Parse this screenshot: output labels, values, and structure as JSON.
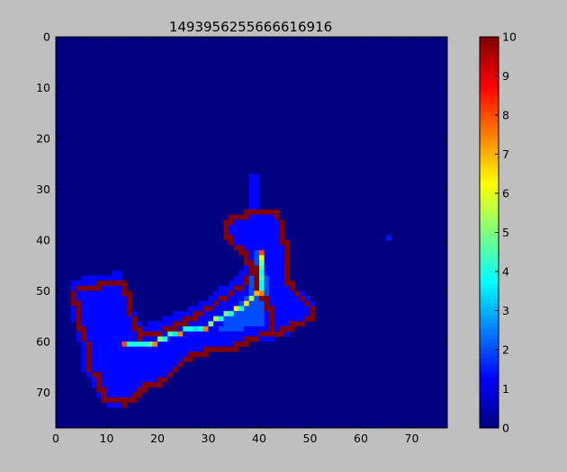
{
  "chart_data": {
    "type": "heatmap",
    "title": "1493956255666616916",
    "xlabel": "",
    "ylabel": "",
    "grid_size": 77,
    "xlim": [
      0,
      77
    ],
    "ylim": [
      77,
      0
    ],
    "x_ticks": [
      0,
      10,
      20,
      30,
      40,
      50,
      60,
      70
    ],
    "y_ticks": [
      0,
      10,
      20,
      30,
      40,
      50,
      60,
      70
    ],
    "colorbar": {
      "vmin": 0,
      "vmax": 10,
      "ticks": [
        0,
        1,
        2,
        3,
        4,
        5,
        6,
        7,
        8,
        9,
        10
      ],
      "colormap": "jet"
    },
    "background_value": 0,
    "regions": [
      {
        "note": "filled interior",
        "value": 1.3,
        "polygon": [
          [
            3,
            48.5
          ],
          [
            6,
            47
          ],
          [
            9,
            47
          ],
          [
            11,
            46.5
          ],
          [
            13,
            46
          ],
          [
            14,
            49
          ],
          [
            15,
            53
          ],
          [
            17,
            57
          ],
          [
            22,
            55
          ],
          [
            27,
            53
          ],
          [
            31,
            51
          ],
          [
            33,
            49
          ],
          [
            36,
            47
          ],
          [
            38,
            44
          ],
          [
            36,
            41
          ],
          [
            33,
            39.5
          ],
          [
            33,
            37
          ],
          [
            36,
            35
          ],
          [
            41,
            34.5
          ],
          [
            44,
            35.5
          ],
          [
            45,
            40
          ],
          [
            46,
            44
          ],
          [
            45.5,
            48
          ],
          [
            48,
            50
          ],
          [
            51,
            52
          ],
          [
            51,
            55
          ],
          [
            48,
            57
          ],
          [
            45,
            59
          ],
          [
            41,
            60
          ],
          [
            37,
            60
          ],
          [
            35,
            61
          ],
          [
            30,
            62
          ],
          [
            26,
            63
          ],
          [
            23,
            66
          ],
          [
            21,
            68
          ],
          [
            19,
            69
          ],
          [
            17,
            70
          ],
          [
            15,
            72
          ],
          [
            12,
            73
          ],
          [
            9,
            72
          ],
          [
            8,
            70
          ],
          [
            7,
            67
          ],
          [
            5,
            65
          ],
          [
            5,
            61
          ],
          [
            4,
            58
          ],
          [
            3,
            54
          ]
        ]
      },
      {
        "note": "right arm brighter",
        "value": 2.0,
        "polygon": [
          [
            39,
            42
          ],
          [
            41,
            42
          ],
          [
            42,
            52
          ],
          [
            41,
            57
          ],
          [
            37,
            57.5
          ],
          [
            34,
            58.5
          ],
          [
            32,
            58
          ],
          [
            33,
            56
          ],
          [
            36,
            53
          ],
          [
            38,
            50
          ]
        ]
      },
      {
        "note": "spur",
        "value": 1.3,
        "polygon": [
          [
            38.5,
            27
          ],
          [
            39.5,
            27
          ],
          [
            40,
            35
          ],
          [
            38.5,
            35
          ]
        ]
      }
    ],
    "walls": [
      {
        "note": "boundary contour",
        "value": 10,
        "points": [
          [
            4,
            54
          ],
          [
            3,
            50
          ],
          [
            5,
            48.5
          ],
          [
            8,
            48.5
          ],
          [
            11,
            48
          ],
          [
            12.5,
            47.5
          ],
          [
            13.5,
            50
          ],
          [
            14,
            53
          ],
          [
            15,
            56
          ],
          [
            16,
            58.5
          ],
          [
            19,
            58
          ],
          [
            22,
            57
          ],
          [
            25,
            55.5
          ],
          [
            28,
            54
          ],
          [
            31,
            52
          ],
          [
            34,
            50
          ],
          [
            37,
            48
          ],
          [
            38,
            45
          ],
          [
            36.5,
            42
          ],
          [
            34,
            40
          ],
          [
            32.5,
            37.5
          ],
          [
            34,
            35.5
          ],
          [
            37,
            34.5
          ],
          [
            41,
            33.5
          ],
          [
            43,
            34.5
          ],
          [
            44,
            37
          ],
          [
            44.5,
            40
          ],
          [
            45,
            44
          ],
          [
            45,
            47
          ],
          [
            46,
            49
          ],
          [
            48,
            51
          ],
          [
            50,
            53
          ],
          [
            50,
            55
          ],
          [
            47,
            56
          ],
          [
            44,
            57.5
          ],
          [
            41,
            58
          ],
          [
            38,
            59
          ],
          [
            35,
            60.5
          ],
          [
            32,
            61
          ],
          [
            29,
            61.5
          ],
          [
            26,
            62.5
          ],
          [
            24,
            64
          ],
          [
            22,
            66
          ],
          [
            20,
            67.5
          ],
          [
            18,
            68
          ],
          [
            16,
            69
          ],
          [
            15,
            71
          ],
          [
            13,
            71.5
          ],
          [
            11,
            71
          ],
          [
            9,
            71
          ],
          [
            8.5,
            69
          ],
          [
            8,
            66.5
          ],
          [
            6,
            65
          ],
          [
            5.5,
            63
          ],
          [
            6,
            61
          ],
          [
            5,
            58
          ],
          [
            4,
            56
          ],
          [
            4,
            54
          ]
        ]
      },
      {
        "note": "inner ridge",
        "value": 10,
        "points": [
          [
            40,
            43
          ],
          [
            39,
            45.5
          ],
          [
            38.5,
            47.5
          ],
          [
            39,
            49.5
          ],
          [
            40.5,
            51
          ],
          [
            41.5,
            53
          ],
          [
            42,
            55.5
          ],
          [
            41.5,
            57
          ]
        ]
      }
    ],
    "ridge": [
      {
        "x": 13,
        "y": 60,
        "value": 8
      },
      {
        "x": 14,
        "y": 60,
        "value": 4
      },
      {
        "x": 15,
        "y": 60,
        "value": 4
      },
      {
        "x": 16,
        "y": 60,
        "value": 4
      },
      {
        "x": 17,
        "y": 60,
        "value": 4
      },
      {
        "x": 18,
        "y": 60,
        "value": 4.5
      },
      {
        "x": 19,
        "y": 60,
        "value": 7.5
      },
      {
        "x": 20,
        "y": 59,
        "value": 5
      },
      {
        "x": 21,
        "y": 59,
        "value": 4
      },
      {
        "x": 22,
        "y": 58,
        "value": 4.5
      },
      {
        "x": 23,
        "y": 58,
        "value": 3.5
      },
      {
        "x": 24,
        "y": 58,
        "value": 7.5
      },
      {
        "x": 25,
        "y": 57,
        "value": 4
      },
      {
        "x": 26,
        "y": 57,
        "value": 4
      },
      {
        "x": 27,
        "y": 57,
        "value": 3.5
      },
      {
        "x": 28,
        "y": 57,
        "value": 4
      },
      {
        "x": 29,
        "y": 57,
        "value": 7.5
      },
      {
        "x": 30,
        "y": 56,
        "value": 5
      },
      {
        "x": 31,
        "y": 55,
        "value": 5.5
      },
      {
        "x": 32,
        "y": 55,
        "value": 4
      },
      {
        "x": 33,
        "y": 54,
        "value": 5
      },
      {
        "x": 34,
        "y": 54,
        "value": 4
      },
      {
        "x": 35,
        "y": 53,
        "value": 6
      },
      {
        "x": 36,
        "y": 53,
        "value": 4
      },
      {
        "x": 37,
        "y": 52,
        "value": 6.5
      },
      {
        "x": 38,
        "y": 51,
        "value": 5.5
      },
      {
        "x": 39,
        "y": 50,
        "value": 7
      },
      {
        "x": 40,
        "y": 50,
        "value": 7.5
      },
      {
        "x": 40,
        "y": 49,
        "value": 4
      },
      {
        "x": 40,
        "y": 48,
        "value": 4
      },
      {
        "x": 40,
        "y": 47,
        "value": 4.5
      },
      {
        "x": 40,
        "y": 46,
        "value": 4
      },
      {
        "x": 40,
        "y": 45,
        "value": 4.5
      },
      {
        "x": 40,
        "y": 44,
        "value": 5
      },
      {
        "x": 40,
        "y": 43,
        "value": 6
      },
      {
        "x": 40,
        "y": 42,
        "value": 8
      }
    ],
    "isolated_cells": [
      {
        "x": 65,
        "y": 39,
        "value": 1.5
      }
    ]
  }
}
